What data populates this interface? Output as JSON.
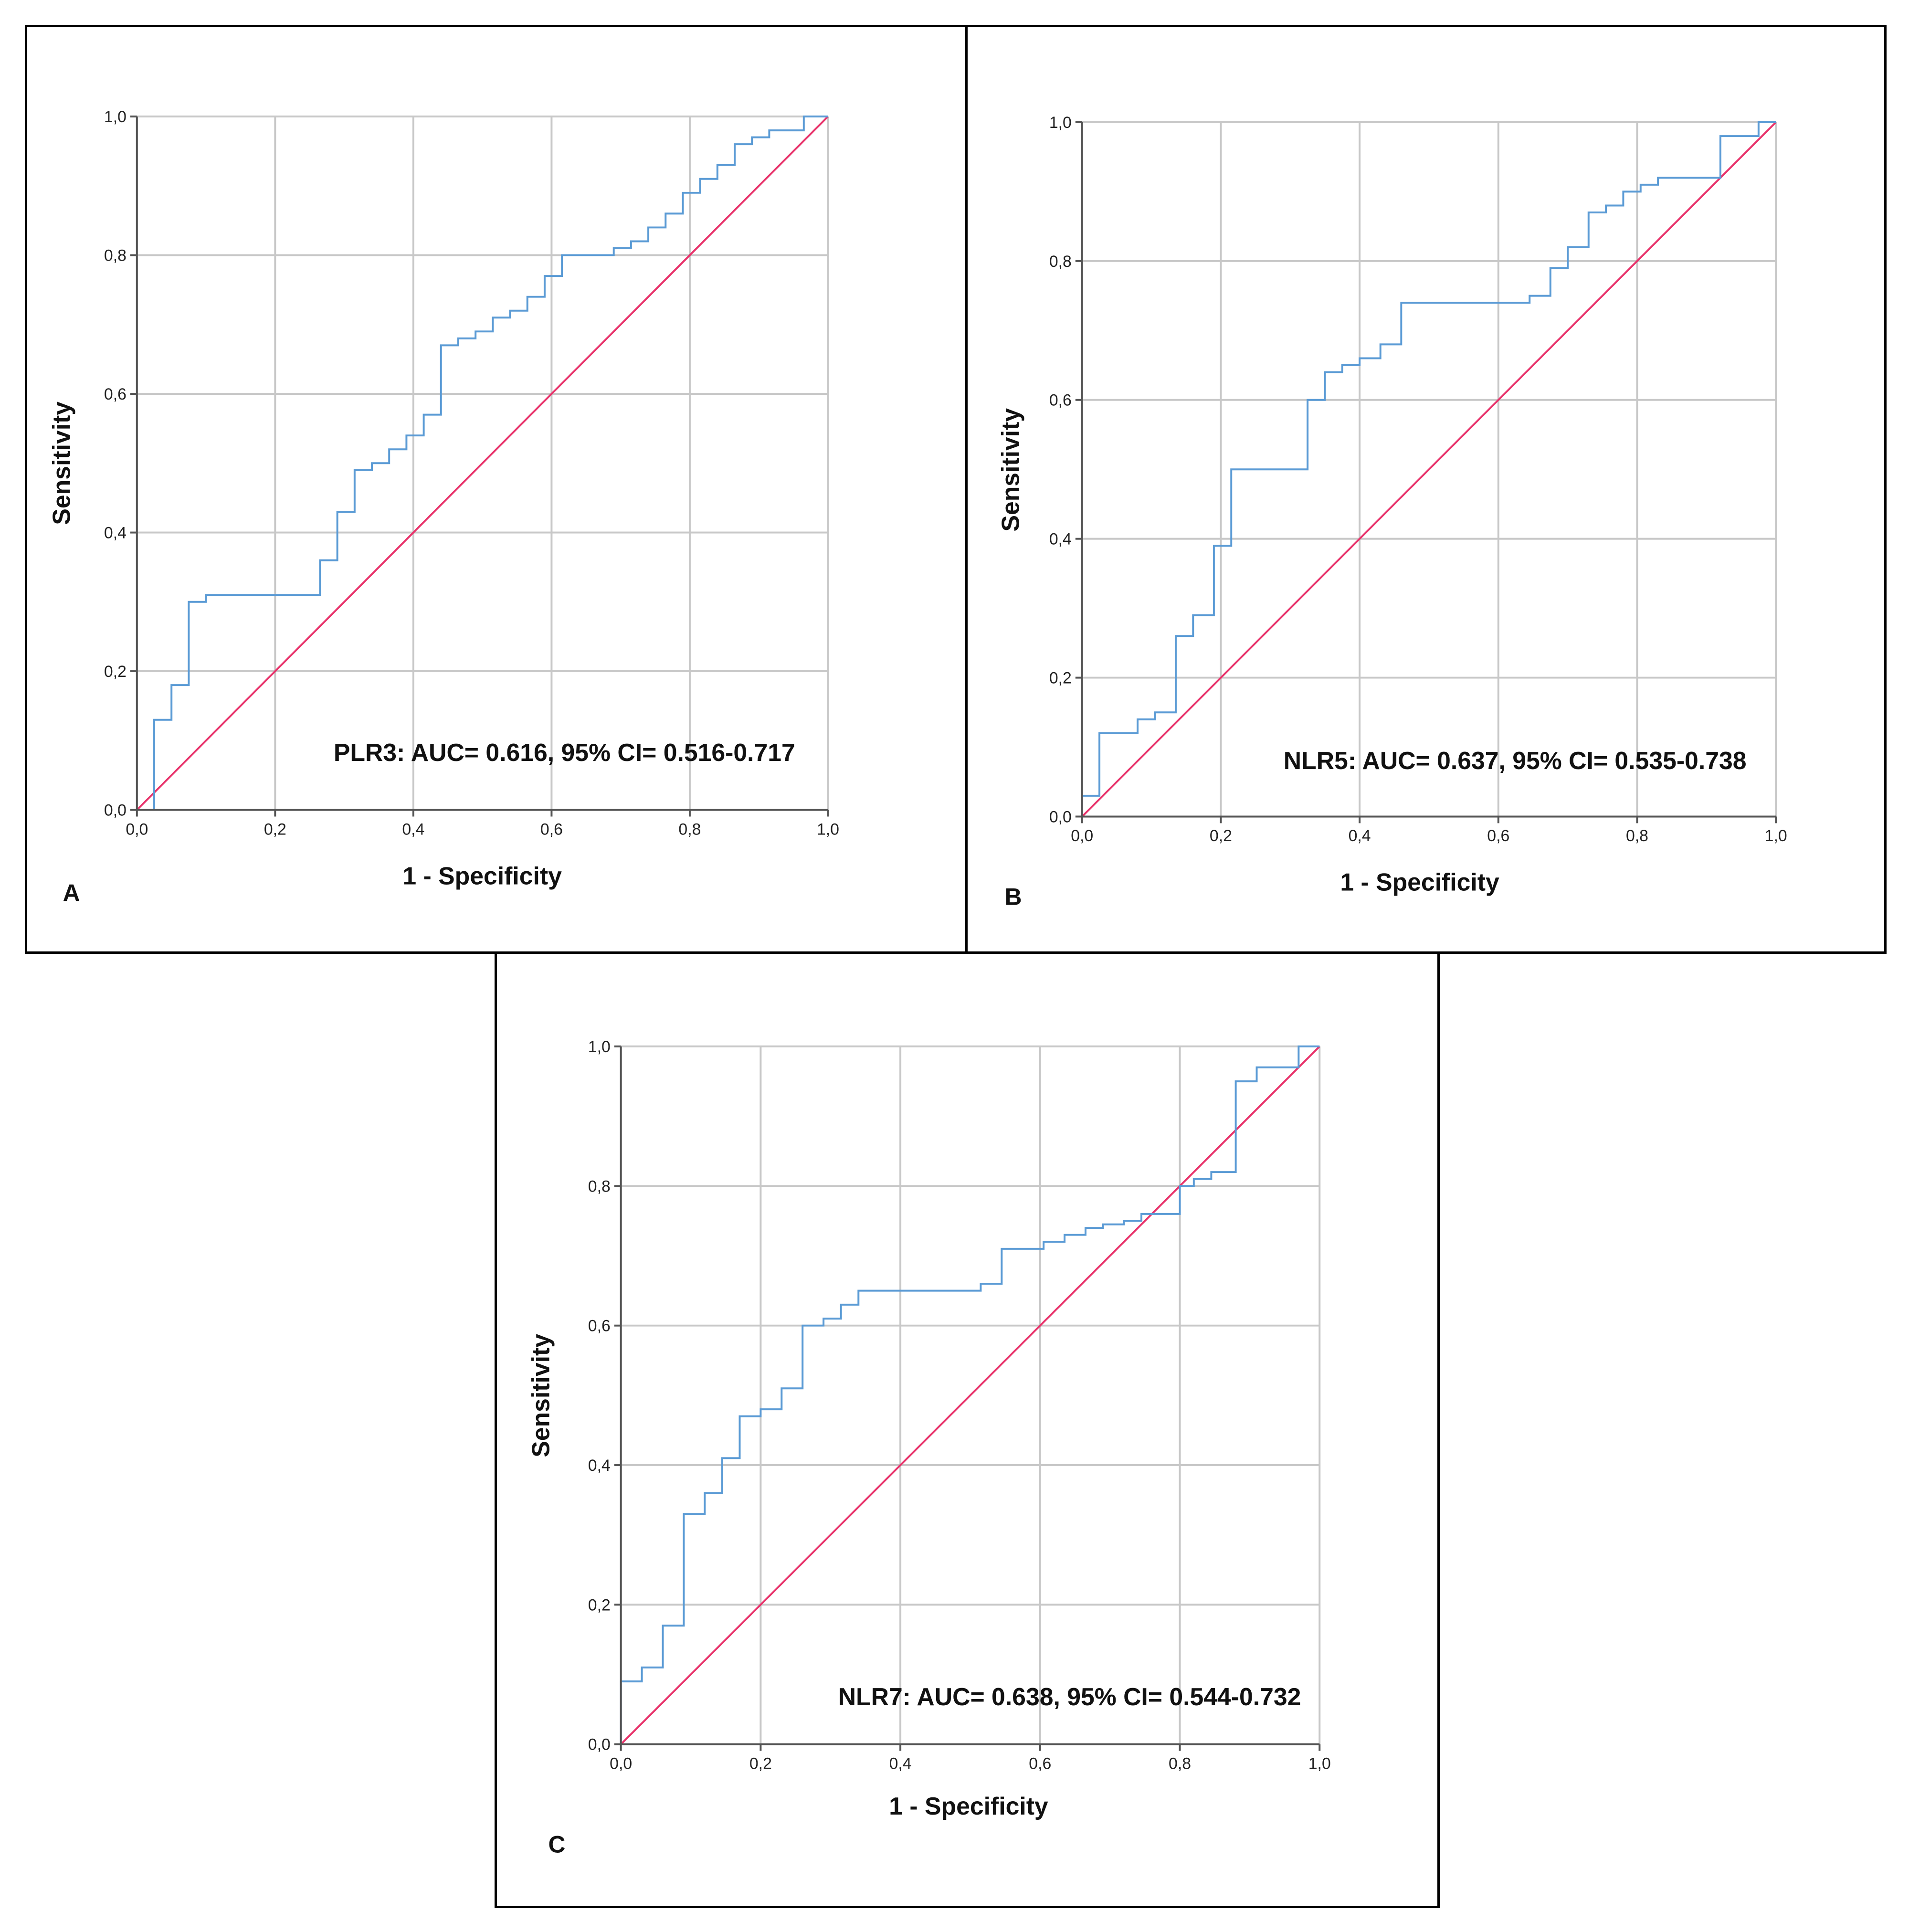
{
  "colors": {
    "roc_line": "#5b9bd5",
    "reference_line": "#e8336b",
    "grid": "#c8c8c8",
    "axis": "#555555"
  },
  "chart_data": [
    {
      "panel_label": "A",
      "type": "line",
      "xlabel": "1 - Specificity",
      "ylabel": "Sensitivity",
      "xlim": [
        0,
        1
      ],
      "ylim": [
        0,
        1
      ],
      "x_ticks": [
        "0,0",
        "0,2",
        "0,4",
        "0,6",
        "0,8",
        "1,0"
      ],
      "y_ticks": [
        "0,0",
        "0,2",
        "0,4",
        "0,6",
        "0,8",
        "1,0"
      ],
      "grid": true,
      "annotation": "PLR3: AUC= 0.616, 95% CI= 0.516-0.717",
      "series": [
        {
          "name": "ROC",
          "points": [
            [
              0,
              0
            ],
            [
              0.025,
              0
            ],
            [
              0.025,
              0.13
            ],
            [
              0.05,
              0.13
            ],
            [
              0.05,
              0.18
            ],
            [
              0.075,
              0.18
            ],
            [
              0.075,
              0.3
            ],
            [
              0.1,
              0.3
            ],
            [
              0.1,
              0.31
            ],
            [
              0.265,
              0.31
            ],
            [
              0.265,
              0.36
            ],
            [
              0.29,
              0.36
            ],
            [
              0.29,
              0.43
            ],
            [
              0.315,
              0.43
            ],
            [
              0.315,
              0.49
            ],
            [
              0.34,
              0.49
            ],
            [
              0.34,
              0.5
            ],
            [
              0.365,
              0.5
            ],
            [
              0.365,
              0.52
            ],
            [
              0.39,
              0.52
            ],
            [
              0.39,
              0.54
            ],
            [
              0.415,
              0.54
            ],
            [
              0.415,
              0.57
            ],
            [
              0.44,
              0.57
            ],
            [
              0.44,
              0.67
            ],
            [
              0.465,
              0.67
            ],
            [
              0.465,
              0.68
            ],
            [
              0.49,
              0.68
            ],
            [
              0.49,
              0.69
            ],
            [
              0.515,
              0.69
            ],
            [
              0.515,
              0.71
            ],
            [
              0.54,
              0.71
            ],
            [
              0.54,
              0.72
            ],
            [
              0.565,
              0.72
            ],
            [
              0.565,
              0.74
            ],
            [
              0.59,
              0.74
            ],
            [
              0.59,
              0.77
            ],
            [
              0.615,
              0.77
            ],
            [
              0.615,
              0.8
            ],
            [
              0.69,
              0.8
            ],
            [
              0.69,
              0.81
            ],
            [
              0.715,
              0.81
            ],
            [
              0.715,
              0.82
            ],
            [
              0.74,
              0.82
            ],
            [
              0.74,
              0.84
            ],
            [
              0.765,
              0.84
            ],
            [
              0.765,
              0.86
            ],
            [
              0.79,
              0.86
            ],
            [
              0.79,
              0.89
            ],
            [
              0.815,
              0.89
            ],
            [
              0.815,
              0.91
            ],
            [
              0.84,
              0.91
            ],
            [
              0.84,
              0.93
            ],
            [
              0.865,
              0.93
            ],
            [
              0.865,
              0.96
            ],
            [
              0.89,
              0.96
            ],
            [
              0.89,
              0.97
            ],
            [
              0.915,
              0.97
            ],
            [
              0.915,
              0.98
            ],
            [
              0.965,
              0.98
            ],
            [
              0.965,
              1.0
            ],
            [
              1.0,
              1.0
            ]
          ]
        },
        {
          "name": "Reference Line",
          "points": [
            [
              0,
              0
            ],
            [
              1,
              1
            ]
          ]
        }
      ]
    },
    {
      "panel_label": "B",
      "type": "line",
      "xlabel": "1 - Specificity",
      "ylabel": "Sensitivity",
      "xlim": [
        0,
        1
      ],
      "ylim": [
        0,
        1
      ],
      "x_ticks": [
        "0,0",
        "0,2",
        "0,4",
        "0,6",
        "0,8",
        "1,0"
      ],
      "y_ticks": [
        "0,0",
        "0,2",
        "0,4",
        "0,6",
        "0,8",
        "1,0"
      ],
      "grid": true,
      "annotation": "NLR5: AUC= 0.637, 95% CI= 0.535-0.738",
      "series": [
        {
          "name": "ROC",
          "points": [
            [
              0,
              0
            ],
            [
              0,
              0.03
            ],
            [
              0.025,
              0.03
            ],
            [
              0.025,
              0.12
            ],
            [
              0.08,
              0.12
            ],
            [
              0.08,
              0.14
            ],
            [
              0.105,
              0.14
            ],
            [
              0.105,
              0.15
            ],
            [
              0.135,
              0.15
            ],
            [
              0.135,
              0.26
            ],
            [
              0.16,
              0.26
            ],
            [
              0.16,
              0.29
            ],
            [
              0.19,
              0.29
            ],
            [
              0.19,
              0.39
            ],
            [
              0.215,
              0.39
            ],
            [
              0.215,
              0.5
            ],
            [
              0.325,
              0.5
            ],
            [
              0.325,
              0.6
            ],
            [
              0.35,
              0.6
            ],
            [
              0.35,
              0.64
            ],
            [
              0.375,
              0.64
            ],
            [
              0.375,
              0.65
            ],
            [
              0.4,
              0.65
            ],
            [
              0.4,
              0.66
            ],
            [
              0.43,
              0.66
            ],
            [
              0.43,
              0.68
            ],
            [
              0.46,
              0.68
            ],
            [
              0.46,
              0.74
            ],
            [
              0.645,
              0.74
            ],
            [
              0.645,
              0.75
            ],
            [
              0.675,
              0.75
            ],
            [
              0.675,
              0.79
            ],
            [
              0.7,
              0.79
            ],
            [
              0.7,
              0.82
            ],
            [
              0.73,
              0.82
            ],
            [
              0.73,
              0.87
            ],
            [
              0.755,
              0.87
            ],
            [
              0.755,
              0.88
            ],
            [
              0.78,
              0.88
            ],
            [
              0.78,
              0.9
            ],
            [
              0.805,
              0.9
            ],
            [
              0.805,
              0.91
            ],
            [
              0.83,
              0.91
            ],
            [
              0.83,
              0.92
            ],
            [
              0.92,
              0.92
            ],
            [
              0.92,
              0.98
            ],
            [
              0.975,
              0.98
            ],
            [
              0.975,
              1.0
            ],
            [
              1.0,
              1.0
            ]
          ]
        },
        {
          "name": "Reference Line",
          "points": [
            [
              0,
              0
            ],
            [
              1,
              1
            ]
          ]
        }
      ]
    },
    {
      "panel_label": "C",
      "type": "line",
      "xlabel": "1 - Specificity",
      "ylabel": "Sensitivity",
      "xlim": [
        0,
        1
      ],
      "ylim": [
        0,
        1
      ],
      "x_ticks": [
        "0,0",
        "0,2",
        "0,4",
        "0,6",
        "0,8",
        "1,0"
      ],
      "y_ticks": [
        "0,0",
        "0,2",
        "0,4",
        "0,6",
        "0,8",
        "1,0"
      ],
      "grid": true,
      "annotation": "NLR7: AUC= 0.638, 95% CI= 0.544-0.732",
      "series": [
        {
          "name": "ROC",
          "points": [
            [
              0,
              0
            ],
            [
              0,
              0.09
            ],
            [
              0.03,
              0.09
            ],
            [
              0.03,
              0.11
            ],
            [
              0.06,
              0.11
            ],
            [
              0.06,
              0.17
            ],
            [
              0.09,
              0.17
            ],
            [
              0.09,
              0.33
            ],
            [
              0.12,
              0.33
            ],
            [
              0.12,
              0.36
            ],
            [
              0.145,
              0.36
            ],
            [
              0.145,
              0.41
            ],
            [
              0.17,
              0.41
            ],
            [
              0.17,
              0.47
            ],
            [
              0.2,
              0.47
            ],
            [
              0.2,
              0.48
            ],
            [
              0.23,
              0.48
            ],
            [
              0.23,
              0.51
            ],
            [
              0.26,
              0.51
            ],
            [
              0.26,
              0.6
            ],
            [
              0.29,
              0.6
            ],
            [
              0.29,
              0.61
            ],
            [
              0.315,
              0.61
            ],
            [
              0.315,
              0.63
            ],
            [
              0.34,
              0.63
            ],
            [
              0.34,
              0.65
            ],
            [
              0.515,
              0.65
            ],
            [
              0.515,
              0.66
            ],
            [
              0.545,
              0.66
            ],
            [
              0.545,
              0.71
            ],
            [
              0.605,
              0.71
            ],
            [
              0.605,
              0.72
            ],
            [
              0.635,
              0.72
            ],
            [
              0.635,
              0.73
            ],
            [
              0.665,
              0.73
            ],
            [
              0.665,
              0.74
            ],
            [
              0.69,
              0.74
            ],
            [
              0.69,
              0.745
            ],
            [
              0.72,
              0.745
            ],
            [
              0.72,
              0.75
            ],
            [
              0.745,
              0.75
            ],
            [
              0.745,
              0.76
            ],
            [
              0.8,
              0.76
            ],
            [
              0.8,
              0.8
            ],
            [
              0.82,
              0.8
            ],
            [
              0.82,
              0.81
            ],
            [
              0.845,
              0.81
            ],
            [
              0.845,
              0.82
            ],
            [
              0.88,
              0.82
            ],
            [
              0.88,
              0.95
            ],
            [
              0.91,
              0.95
            ],
            [
              0.91,
              0.97
            ],
            [
              0.97,
              0.97
            ],
            [
              0.97,
              1.0
            ],
            [
              1.0,
              1.0
            ]
          ]
        },
        {
          "name": "Reference Line",
          "points": [
            [
              0,
              0
            ],
            [
              1,
              1
            ]
          ]
        }
      ]
    }
  ]
}
